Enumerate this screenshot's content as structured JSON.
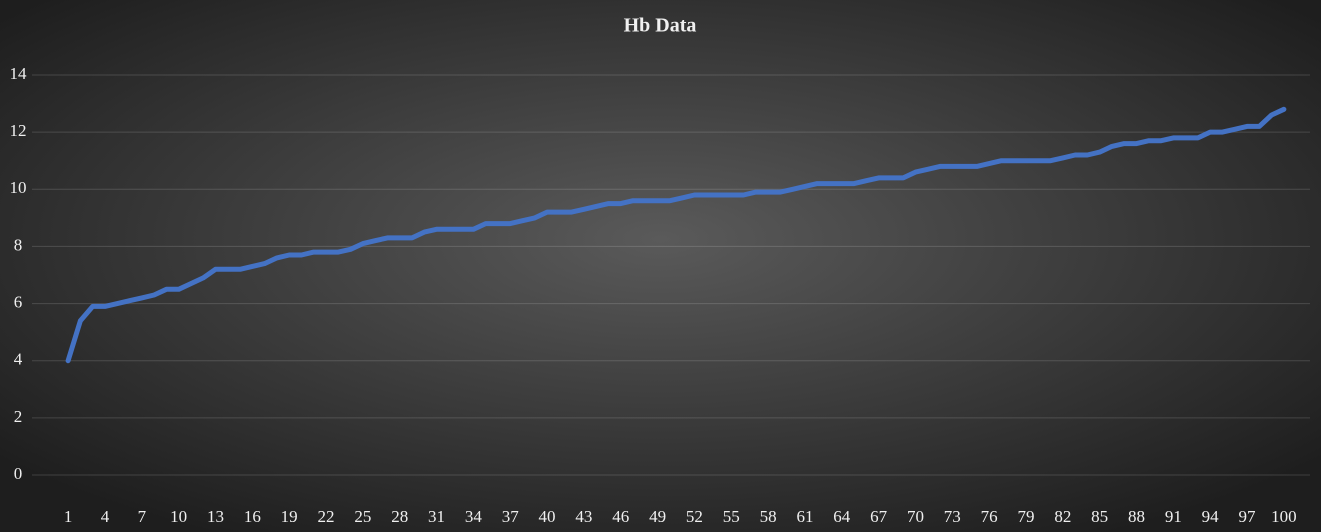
{
  "chart_data": {
    "type": "line",
    "title": "Hb Data",
    "categories": [
      "1",
      null,
      null,
      "4",
      null,
      null,
      "7",
      null,
      null,
      "10",
      null,
      null,
      "13",
      null,
      null,
      "16",
      null,
      null,
      "19",
      null,
      null,
      "22",
      null,
      null,
      "25",
      null,
      null,
      "28",
      null,
      null,
      "31",
      null,
      null,
      "34",
      null,
      null,
      "37",
      null,
      null,
      "40",
      null,
      null,
      "43",
      null,
      null,
      "46",
      null,
      null,
      "49",
      null,
      null,
      "52",
      null,
      null,
      "55",
      null,
      null,
      "58",
      null,
      null,
      "61",
      null,
      null,
      "64",
      null,
      null,
      "67",
      null,
      null,
      "70",
      null,
      null,
      "73",
      null,
      null,
      "76",
      null,
      null,
      "79",
      null,
      null,
      "82",
      null,
      null,
      "85",
      null,
      null,
      "88",
      null,
      null,
      "91",
      null,
      null,
      "94",
      null,
      null,
      "97",
      null,
      null,
      "100"
    ],
    "values": [
      4.0,
      5.4,
      5.9,
      5.9,
      6.0,
      6.1,
      6.2,
      6.3,
      6.5,
      6.5,
      6.7,
      6.9,
      7.2,
      7.2,
      7.2,
      7.3,
      7.4,
      7.6,
      7.7,
      7.7,
      7.8,
      7.8,
      7.8,
      7.9,
      8.1,
      8.2,
      8.3,
      8.3,
      8.3,
      8.5,
      8.6,
      8.6,
      8.6,
      8.6,
      8.8,
      8.8,
      8.8,
      8.9,
      9.0,
      9.2,
      9.2,
      9.2,
      9.3,
      9.4,
      9.5,
      9.5,
      9.6,
      9.6,
      9.6,
      9.6,
      9.7,
      9.8,
      9.8,
      9.8,
      9.8,
      9.8,
      9.9,
      9.9,
      9.9,
      10.0,
      10.1,
      10.2,
      10.2,
      10.2,
      10.2,
      10.3,
      10.4,
      10.4,
      10.4,
      10.6,
      10.7,
      10.8,
      10.8,
      10.8,
      10.8,
      10.9,
      11.0,
      11.0,
      11.0,
      11.0,
      11.0,
      11.1,
      11.2,
      11.2,
      11.3,
      11.5,
      11.6,
      11.6,
      11.7,
      11.7,
      11.8,
      11.8,
      11.8,
      12.0,
      12.0,
      12.1,
      12.2,
      12.2,
      12.6,
      12.8
    ],
    "color": "#4472c4",
    "ylim": [
      0,
      14
    ],
    "yticks": [
      0,
      2,
      4,
      6,
      8,
      10,
      12,
      14
    ],
    "grid": true
  }
}
